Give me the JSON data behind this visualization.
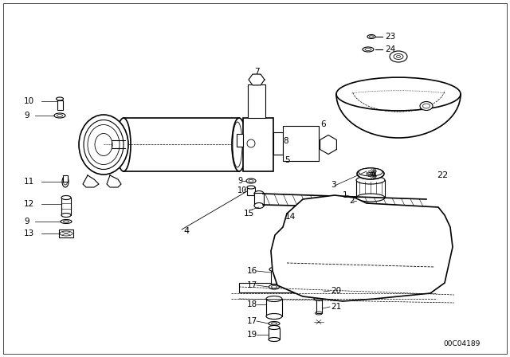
{
  "bg_color": "#ffffff",
  "line_color": "#000000",
  "diagram_id": "00C04189",
  "label_fontsize": 7.5
}
